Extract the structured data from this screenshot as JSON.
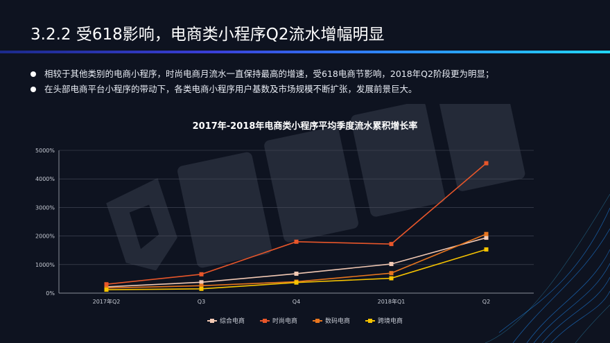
{
  "slide": {
    "title": "3.2.2  受618影响，电商类小程序Q2流水增幅明显",
    "bullets": [
      "相较于其他类别的电商小程序，时尚电商月流水一直保持最高的增速，受618电商节影响，2018年Q2阶段更为明显；",
      "在头部电商平台小程序的带动下，各类电商小程序用户基数及市场规模不断扩张，发展前景巨大。"
    ]
  },
  "colors": {
    "background": "#0e1320",
    "title_rule_start": "#3a3fd8",
    "title_rule_end": "#22d7ff",
    "gridline": "#4a4f5c"
  },
  "chart_data": {
    "type": "line",
    "title": "2017年-2018年电商类小程序平均季度流水累积增长率",
    "categories": [
      "2017年Q2",
      "Q3",
      "Q4",
      "2018年Q1",
      "Q2"
    ],
    "ylim": [
      0,
      5000
    ],
    "yticks": [
      0,
      1000,
      2000,
      3000,
      4000,
      5000
    ],
    "ytick_labels": [
      "0%",
      "1000%",
      "2000%",
      "3000%",
      "4000%",
      "5000%"
    ],
    "grid": true,
    "legend_position": "bottom",
    "series": [
      {
        "name": "综合电商",
        "color": "#f2c9b4",
        "values": [
          220,
          380,
          680,
          1020,
          1940
        ]
      },
      {
        "name": "时尚电商",
        "color": "#e8562a",
        "values": [
          310,
          660,
          1800,
          1720,
          4550
        ]
      },
      {
        "name": "数码电商",
        "color": "#e8761f",
        "values": [
          180,
          260,
          400,
          700,
          2070
        ]
      },
      {
        "name": "跨境电商",
        "color": "#f7c400",
        "values": [
          120,
          150,
          370,
          520,
          1530
        ]
      }
    ]
  }
}
